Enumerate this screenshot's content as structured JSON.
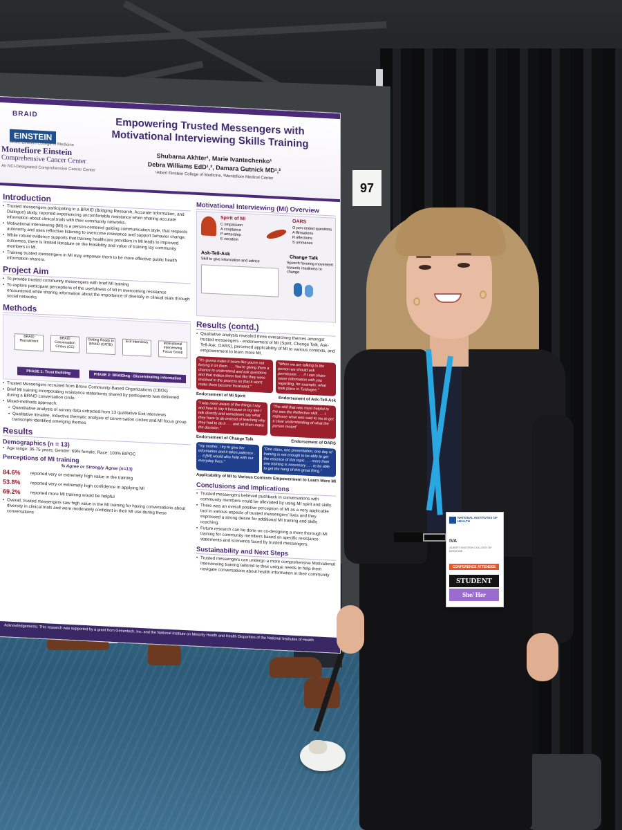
{
  "booth": {
    "board_number": "97"
  },
  "poster": {
    "logos": {
      "braid": "BRAID",
      "einstein": "EINSTEIN",
      "einstein_sub": "Albert Einstein College of Medicine",
      "montefiore": "Montefiore Einstein",
      "montefiore_sub": "Comprehensive Cancer Center",
      "montefiore_tag": "An NCI-Designated Comprehensive Cancer Center"
    },
    "title": "Empowering Trusted Messengers with Motivational Interviewing Skills Training",
    "authors_line1": "Shubarna Akhter¹, Marie Ivantechenko¹",
    "authors_line2": "Debra Williams EdD¹,², Damara Gutnick MD¹,²",
    "affiliations": "¹Albert Einstein College of Medicine, ²Montefiore Medical Center",
    "intro": {
      "heading": "Introduction",
      "bullets": [
        "Trusted messengers participating in a BRAID (Bridging Research, Accurate Information, and Dialogue) study, reported experiencing uncomfortable resistance when sharing accurate information about clinical trials with their community networks.",
        "Motivational interviewing (MI) is a person-centered guiding communication style, that respects autonomy and uses reflective listening to overcome resistance and support behavior change.",
        "While robust evidence supports that training healthcare providers in MI leads to improved outcomes, there is limited literature on the feasibility and value of training lay community members in MI.",
        "Training trusted messengers in MI may empower them to be more effective public health information sharers."
      ]
    },
    "aim": {
      "heading": "Project Aim",
      "bullets": [
        "To provide trusted community messengers with brief MI training",
        "To explore participant perceptions of the usefulness of MI in overcoming resistance encountered while sharing information about the importance of diversity in clinical trials through social networks"
      ]
    },
    "methods": {
      "heading": "Methods",
      "steps": [
        "BRAID Recruitment",
        "BRAID Conversation Circles (CC)",
        "Getting Ready to BRAID (GRTB)",
        "Exit Interviews",
        "Motivational Interviewing Focus Group"
      ],
      "phase1": "PHASE 1: Trust Building",
      "phase2": "PHASE 2: BRAIDing - Disseminating information",
      "bullets": [
        "Trusted Messengers recruited from Bronx Community-Based Organizations (CBOs)",
        "Brief MI training incorporating resistance statements shared by participants was delivered during a BRAID conversation circle.",
        "Mixed-methods approach:",
        "Quantitative analysis of survey data extracted from 13 qualitative Exit interviews",
        "Qualitative iterative, inductive thematic analysis of conversation circles and MI focus group transcripts identified emerging themes"
      ]
    },
    "results": {
      "heading": "Results",
      "demographics_heading": "Demographics (n = 13)",
      "demographics": "Age range: 36-75 years; Gender: 69% female; Race: 100% BIPOC",
      "perceptions_heading": "Perceptions of MI training",
      "agree_label": "% Agree or Strongly Agree (n=13)",
      "stats": [
        {
          "pct": "84.6%",
          "label": "reported very or extremely high value in the training"
        },
        {
          "pct": "53.8%",
          "label": "reported very or extremely high confidence in applying MI"
        },
        {
          "pct": "69.2%",
          "label": "reported more MI training would be helpful"
        }
      ],
      "summary": "Overall, trusted messengers saw high value in the MI training for having conversations about diversity in clinical trials and were moderately confident in their MI use during these conversations"
    },
    "mi_overview": {
      "heading": "Motivational Interviewing (MI) Overview",
      "spirit_heading": "Spirit of MI",
      "spirit": [
        "C ompassion",
        "A cceptance",
        "P artnership",
        "E vocation"
      ],
      "oars_heading": "OARS",
      "oars": [
        "O pen-ended questions",
        "A ffirmations",
        "R eflections",
        "S ummaries"
      ],
      "ask_tell_ask": "Ask-Tell-Ask",
      "ask_tell_ask_sub": "Skill to give information and advice",
      "change_talk": "Change Talk",
      "change_talk_sub": "Speech favoring movement towards readiness to change"
    },
    "results_contd": {
      "heading": "Results (contd.)",
      "text": "Qualitative analysis revealed three overarching themes amongst trusted messengers - endorsement of MI (Spirit, Change Talk, Ask-Tell-Ask, OARS), perceived applicability of MI to various contexts, and empowerment to learn more MI.",
      "quotes": [
        "\"It's gonna make it seem like you're not forcing it on them . . . You're giving them a chance to understand and ask questions and that makes them feel like they were involved in the process so that it won't make them become frustrated.\"",
        "\"When we are talking to the person we should ask permission . . . if I can share some information with you regarding, for example, what took place in Tuskegee.\"",
        "\"I was more aware of the things I say and how to say it because in my line I talk directly and sometimes say what they have to do instead of teaching why they had to do it . . . and let them make the decision.\"",
        "\"The skill that was most helpful to me was the Reflective skill . . . I rephrase what was said to me to get a clear understanding of what the person meant\"",
        "\"my mother, I try to give her information and it takes patience . . . it [MI] would also help with our everyday lives.\"",
        "\"One class, one presentation, one day of training is not enough to be able to get the essence of this topic . . . more than one training is necessary . . . to be able to get the hang of this great thing.\""
      ],
      "labels": [
        "Endorsement of MI Spirit",
        "Endorsement of Ask-Tell-Ask",
        "Endorsement of Change Talk",
        "Endorsement of OARS",
        "Applicability of MI to Various Contexts",
        "Empowerment to Learn More MI"
      ]
    },
    "conclusions": {
      "heading": "Conclusions and Implications",
      "bullets": [
        "Trusted messengers believed pushback in conversations with community members could be alleviated by using MI spirit and skills.",
        "There was an overall positive perception of MI as a very applicable tool in various aspects of trusted messengers' lives and they expressed a strong desire for additional MI training and skills coaching.",
        "Future research can be done on co-designing a more thorough MI training for community members based on specific resistance statements and scenarios faced by trusted messengers."
      ]
    },
    "next_steps": {
      "heading": "Sustainability and Next Steps",
      "bullets": [
        "Trusted messengers can undergo a more comprehensive Motivational Interviewing training tailored to their unique needs to help them navigate conversations about health information in their community"
      ]
    },
    "acknowledgements": "Acknowledgements: This research was supported by a grant from Genentech, Inc. and the National Institute on Minority Health and Health Disparities of the National Institutes of Health"
  },
  "badge": {
    "org": "NATIONAL INSTITUTES OF HEALTH",
    "name": "IVA",
    "sub": "ALBERT EINSTEIN COLLEGE OF MEDICINE",
    "attendee": "CONFERENCE ATTENDEE",
    "role": "STUDENT",
    "pronouns": "She/ Her"
  },
  "colors": {
    "poster_accent": "#4b2a78",
    "quote_red": "#9c1f2e",
    "quote_blue": "#1f3f8c",
    "lanyard": "#2aa6e0",
    "carpet": "#2d5c78"
  }
}
